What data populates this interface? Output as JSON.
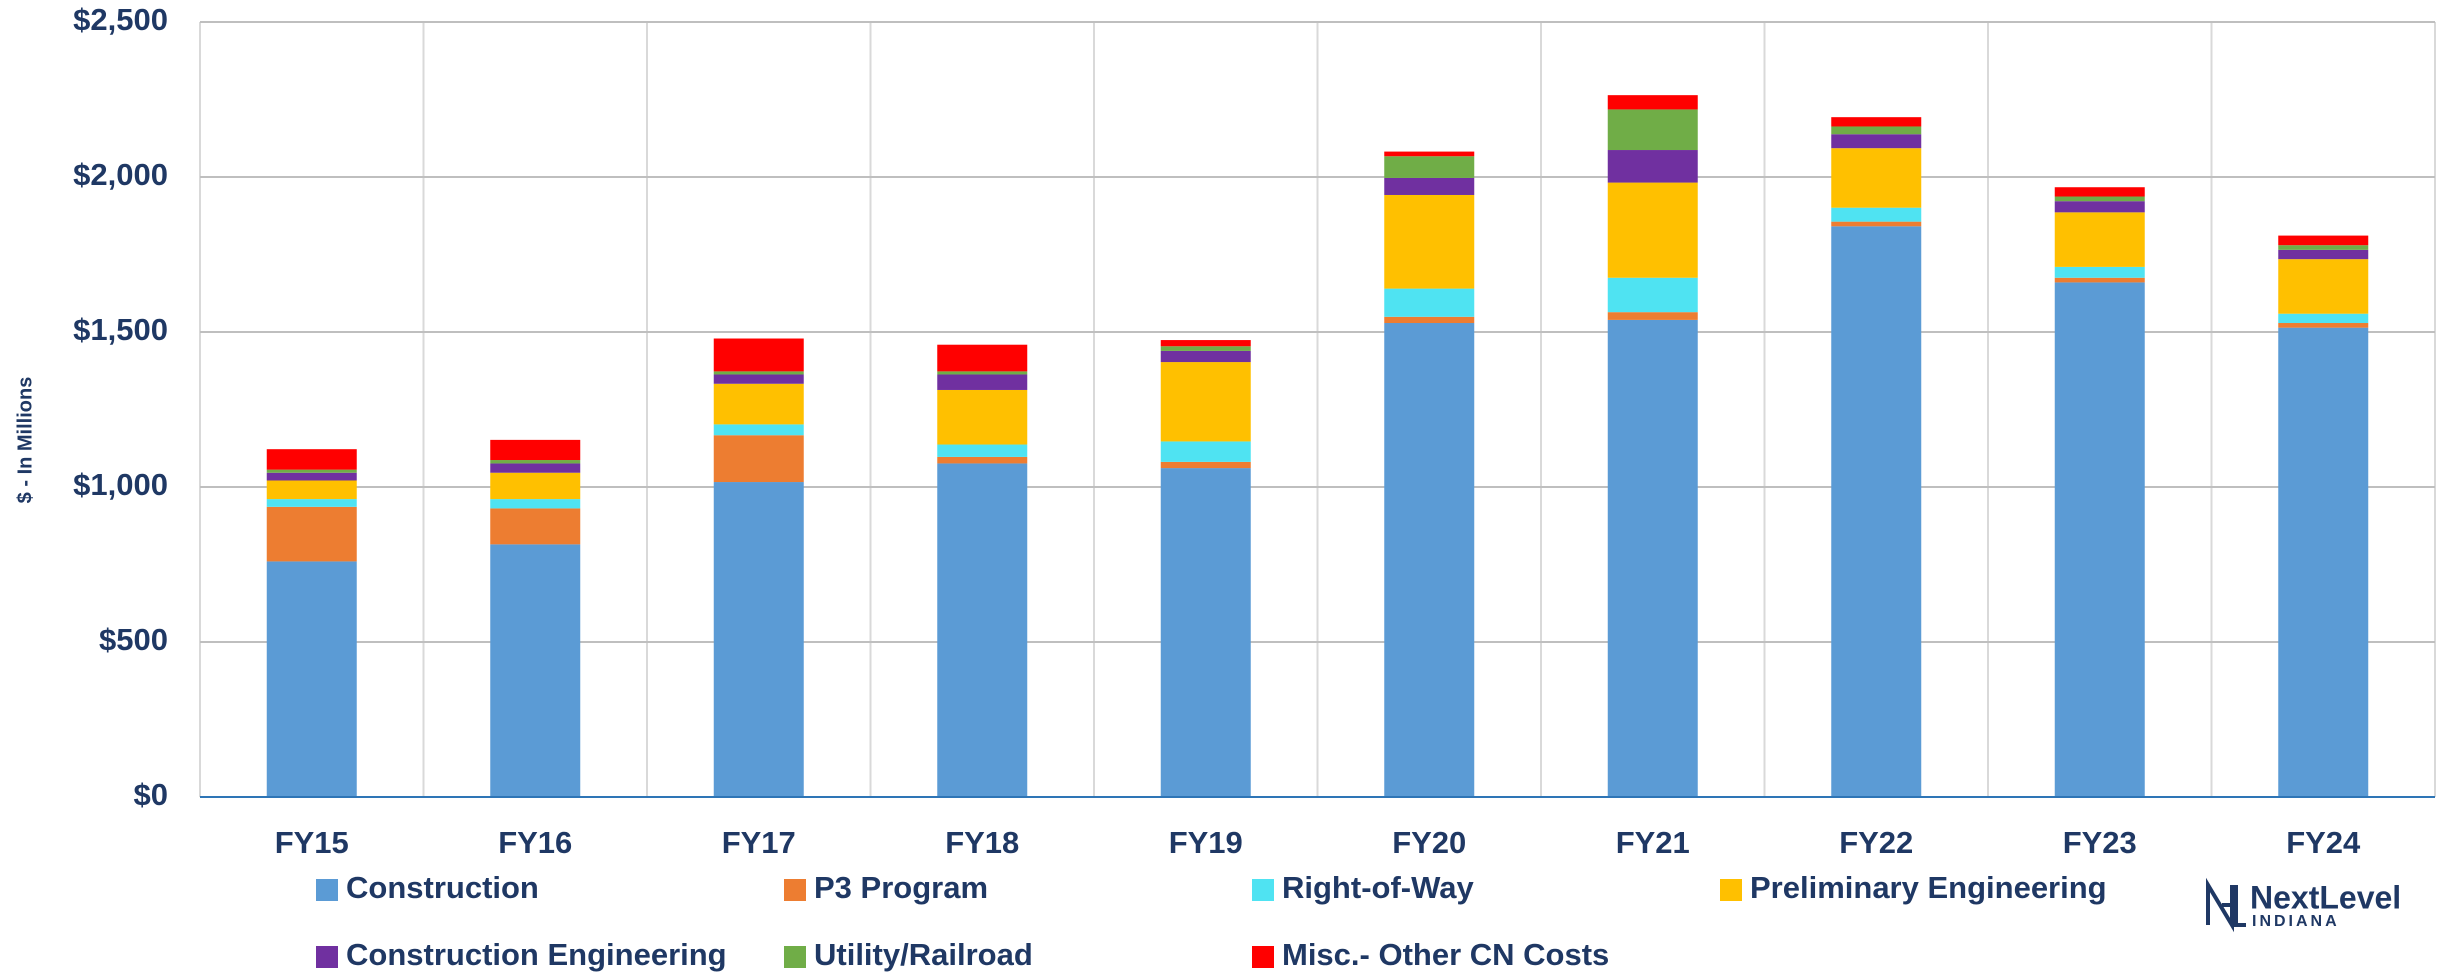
{
  "chart_data": {
    "type": "stacked_bar",
    "ylabel": "$ - In Millions",
    "categories": [
      "FY15",
      "FY16",
      "FY17",
      "FY18",
      "FY19",
      "FY20",
      "FY21",
      "FY22",
      "FY23",
      "FY24"
    ],
    "series": [
      {
        "name": "Construction",
        "color": "#5b9bd5",
        "values": [
          760,
          815,
          1016,
          1076,
          1061,
          1529,
          1539,
          1841,
          1660,
          1514
        ]
      },
      {
        "name": "P3 Program",
        "color": "#ed7d31",
        "values": [
          176,
          116,
          151,
          21,
          20,
          20,
          25,
          15,
          15,
          15
        ]
      },
      {
        "name": "Right-of-Way",
        "color": "#4fe3f2",
        "values": [
          25,
          30,
          35,
          40,
          66,
          91,
          111,
          45,
          35,
          30
        ]
      },
      {
        "name": "Preliminary Engineering",
        "color": "#ffc000",
        "values": [
          60,
          85,
          131,
          176,
          256,
          302,
          307,
          192,
          176,
          176
        ]
      },
      {
        "name": "Construction Engineering",
        "color": "#7030a0",
        "values": [
          25,
          30,
          30,
          50,
          36,
          55,
          105,
          45,
          36,
          30
        ]
      },
      {
        "name": "Utility/Railroad",
        "color": "#70ad47",
        "values": [
          10,
          11,
          10,
          10,
          15,
          70,
          131,
          25,
          15,
          15
        ]
      },
      {
        "name": "Misc.- Other CN Costs",
        "color": "#ff0000",
        "values": [
          66,
          65,
          106,
          86,
          20,
          15,
          46,
          30,
          30,
          31
        ]
      }
    ],
    "ylim": [
      0,
      2500
    ],
    "yticks": [
      {
        "value": 0,
        "label": "$0"
      },
      {
        "value": 500,
        "label": "$500"
      },
      {
        "value": 1000,
        "label": "$1,000"
      },
      {
        "value": 1500,
        "label": "$1,500"
      },
      {
        "value": 2000,
        "label": "$2,000"
      },
      {
        "value": 2500,
        "label": "$2,500"
      }
    ],
    "grid": true,
    "logo": {
      "line1": "NextLevel",
      "line2": "INDIANA"
    }
  }
}
